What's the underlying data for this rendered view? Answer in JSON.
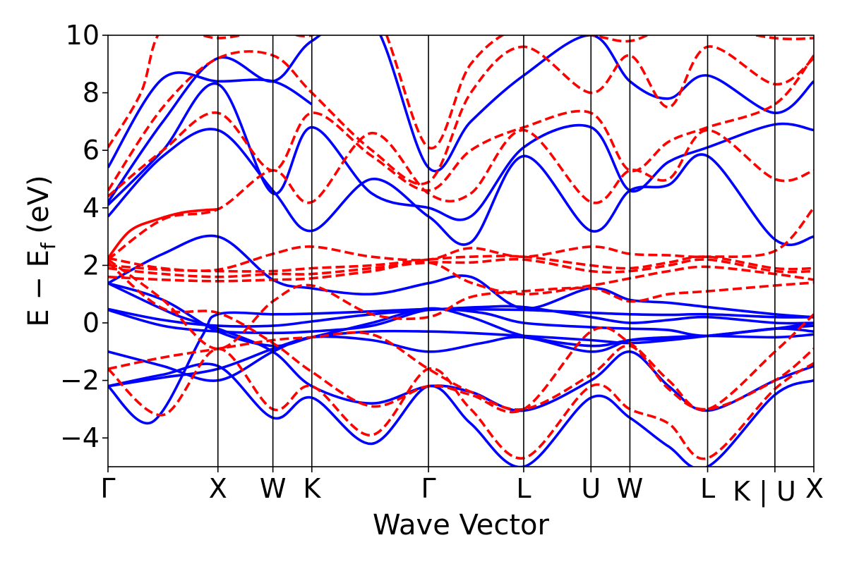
{
  "chart_data": {
    "type": "line",
    "title": "",
    "xlabel": "Wave Vector",
    "ylabel_main": "E − E",
    "ylabel_sub": "f",
    "ylabel_unit": " (eV)",
    "ylim": [
      -5,
      10
    ],
    "yticks": [
      -4,
      -2,
      0,
      2,
      4,
      6,
      8,
      10
    ],
    "ytick_labels": [
      "−4",
      "−2",
      "0",
      "2",
      "4",
      "6",
      "8",
      "10"
    ],
    "kpath": [
      {
        "label": "Γ",
        "x": 0.0
      },
      {
        "label": "X",
        "x": 1.0
      },
      {
        "label": "W",
        "x": 1.5
      },
      {
        "label": "K",
        "x": 1.854
      },
      {
        "label": "Γ",
        "x": 2.915
      },
      {
        "label": "L",
        "x": 3.781
      },
      {
        "label": "U",
        "x": 4.393
      },
      {
        "label": "W",
        "x": 4.747
      },
      {
        "label": "L",
        "x": 5.454
      },
      {
        "label": "K | U",
        "x": 6.066
      },
      {
        "label": "X",
        "x": 6.42
      }
    ],
    "xlim": [
      0,
      6.42
    ],
    "colors": {
      "blue": "#0000ff",
      "red": "#ff0000",
      "axis": "#000000"
    },
    "series": [
      {
        "style": "blue-solid",
        "x": [
          0,
          0.5,
          1.0,
          1.5,
          1.854,
          2.4,
          2.915,
          3.3,
          3.781,
          4.393,
          4.747,
          5.1,
          5.454,
          6.066,
          6.42
        ],
        "y": [
          -2.2,
          -1.9,
          -1.6,
          -0.9,
          -0.5,
          -0.3,
          -0.3,
          -0.35,
          -0.45,
          -0.6,
          -0.7,
          -0.6,
          -0.45,
          -0.2,
          0.0
        ]
      },
      {
        "style": "blue-solid",
        "x": [
          0,
          0.4,
          0.85,
          1.0,
          1.5,
          1.854,
          2.4,
          2.915,
          3.3,
          3.781,
          4.393,
          4.747,
          5.1,
          5.454,
          6.066,
          6.42
        ],
        "y": [
          -2.2,
          -3.45,
          -0.5,
          0.3,
          0.3,
          0.32,
          0.4,
          0.48,
          0.47,
          0.45,
          0.35,
          0.3,
          0.28,
          0.3,
          0.2,
          0.2
        ]
      },
      {
        "style": "blue-solid",
        "x": [
          0,
          0.5,
          1.0,
          1.5,
          1.854,
          2.4,
          2.915,
          3.4,
          3.781,
          4.393,
          4.747,
          5.1,
          5.454,
          6.066,
          6.42
        ],
        "y": [
          0.48,
          0.1,
          -0.1,
          -0.1,
          0.05,
          0.3,
          0.45,
          0.55,
          0.55,
          0.2,
          0.0,
          0.1,
          0.2,
          0.0,
          0.0
        ]
      },
      {
        "style": "blue-solid",
        "x": [
          0,
          0.5,
          1.0,
          1.5,
          1.854,
          2.4,
          2.915,
          3.4,
          3.781,
          4.393,
          4.747,
          5.1,
          5.454,
          6.066,
          6.42
        ],
        "y": [
          0.45,
          -0.1,
          -0.3,
          -0.35,
          -0.3,
          -0.1,
          0.45,
          0.35,
          0.0,
          -0.15,
          -0.2,
          -0.25,
          -0.45,
          -0.2,
          -0.3
        ]
      },
      {
        "style": "blue-solid",
        "x": [
          0,
          0.5,
          1.0,
          1.5,
          1.854,
          2.4,
          2.915,
          3.4,
          3.781,
          4.393,
          4.747,
          5.1,
          5.454,
          6.066,
          6.42
        ],
        "y": [
          -1.0,
          -1.5,
          -2.0,
          -1.0,
          -0.5,
          -0.6,
          -1.0,
          -0.7,
          -0.5,
          -1.0,
          -0.6,
          -0.5,
          -0.45,
          -0.5,
          -0.4
        ]
      },
      {
        "style": "blue-solid",
        "x": [
          0,
          0.5,
          1.0,
          1.5,
          1.854,
          2.4,
          2.915,
          3.3,
          3.781,
          4.393,
          4.747,
          5.1,
          5.454,
          6.066,
          6.42
        ],
        "y": [
          1.38,
          0.8,
          -0.3,
          -0.8,
          -0.5,
          0.0,
          0.5,
          0.2,
          -0.45,
          -0.8,
          -0.6,
          -0.55,
          -0.45,
          -0.2,
          -0.1
        ]
      },
      {
        "style": "blue-solid",
        "x": [
          0,
          0.6,
          1.0,
          1.5,
          1.854,
          2.4,
          2.915,
          3.3,
          3.781,
          4.393,
          4.747,
          5.1,
          5.454,
          6.066,
          6.42
        ],
        "y": [
          1.38,
          0.3,
          -0.2,
          -1.0,
          -2.2,
          -2.8,
          -2.2,
          -2.4,
          -3.05,
          -2.0,
          -1.0,
          -2.2,
          -3.05,
          -2.0,
          -1.5
        ]
      },
      {
        "style": "blue-solid",
        "x": [
          0,
          0.5,
          1.0,
          1.5,
          1.854,
          2.4,
          2.915,
          3.3,
          3.781,
          4.393,
          4.747,
          5.1,
          5.454,
          6.066,
          6.42
        ],
        "y": [
          -2.2,
          -1.8,
          -1.5,
          -3.3,
          -2.6,
          -4.2,
          -2.2,
          -3.5,
          -5.0,
          -2.6,
          -3.3,
          -4.3,
          -5.0,
          -2.5,
          -2.0
        ]
      },
      {
        "style": "blue-solid",
        "x": [
          0,
          0.5,
          1.0,
          1.5,
          1.854,
          2.4,
          2.915,
          3.3,
          3.781,
          4.393,
          4.747,
          5.1,
          5.454,
          6.066,
          6.42
        ],
        "y": [
          1.38,
          2.4,
          3.0,
          1.5,
          1.2,
          1.0,
          1.38,
          1.6,
          0.5,
          1.2,
          0.8,
          0.7,
          0.55,
          0.3,
          0.2
        ]
      },
      {
        "style": "blue-solid",
        "x": [
          0,
          0.5,
          1.0,
          1.5,
          1.854,
          2.4,
          2.915,
          3.3,
          3.781,
          4.393,
          4.747,
          5.1,
          5.454,
          6.066,
          6.42
        ],
        "y": [
          3.7,
          5.8,
          6.7,
          4.6,
          3.2,
          5.0,
          3.7,
          2.8,
          5.8,
          3.2,
          4.6,
          4.8,
          5.8,
          2.9,
          3.0
        ]
      },
      {
        "style": "blue-solid",
        "x": [
          0,
          0.5,
          1.0,
          1.5,
          1.854,
          2.4,
          2.915,
          3.3,
          3.781,
          4.393,
          4.747,
          5.1,
          5.454,
          6.066,
          6.42
        ],
        "y": [
          4.1,
          6.0,
          8.3,
          4.5,
          6.8,
          4.5,
          4.0,
          3.7,
          6.1,
          6.8,
          4.6,
          5.6,
          6.1,
          6.9,
          6.7
        ]
      },
      {
        "style": "blue-solid",
        "x": [
          0,
          0.5,
          1.0,
          1.5,
          1.854,
          2.4,
          2.915,
          3.3,
          3.781,
          4.393,
          4.747,
          5.1,
          5.454,
          6.066,
          6.42
        ],
        "y": [
          4.2,
          7.0,
          9.2,
          8.4,
          9.8,
          10.5,
          5.4,
          7.0,
          8.6,
          10.0,
          8.4,
          7.8,
          8.6,
          7.3,
          8.4
        ]
      },
      {
        "style": "blue-solid",
        "x": [
          0,
          0.5,
          1.0,
          1.5,
          1.854
        ],
        "y": [
          5.4,
          8.5,
          8.4,
          8.4,
          7.6
        ]
      },
      {
        "style": "red-dashed",
        "x": [
          0,
          0.5,
          1.0,
          1.5,
          1.854,
          2.4,
          2.915,
          3.3,
          3.781,
          4.393,
          4.747,
          5.1,
          5.454,
          6.066,
          6.42
        ],
        "y": [
          -1.6,
          -3.2,
          -0.9,
          -3.0,
          -2.2,
          -3.9,
          -1.6,
          -3.0,
          -4.7,
          -2.2,
          -3.0,
          -3.5,
          -4.7,
          -2.3,
          -1.4
        ]
      },
      {
        "style": "red-dashed",
        "x": [
          0,
          0.5,
          1.0,
          1.5,
          1.854,
          2.4,
          2.915,
          3.3,
          3.781,
          4.393,
          4.747,
          5.1,
          5.454,
          6.066,
          6.42
        ],
        "y": [
          -1.6,
          -1.2,
          -0.9,
          -0.6,
          -0.5,
          -0.4,
          -1.6,
          -2.4,
          -3.0,
          -1.8,
          -0.8,
          -2.3,
          -3.0,
          -2.0,
          -0.9
        ]
      },
      {
        "style": "red-dashed",
        "x": [
          0,
          0.5,
          1.0,
          1.5,
          1.854,
          2.4,
          2.915,
          3.3,
          3.781,
          4.393,
          4.747,
          5.1,
          5.454,
          6.066,
          6.42
        ],
        "y": [
          2.1,
          0.5,
          0.35,
          -0.7,
          -1.7,
          -2.9,
          -2.2,
          -2.5,
          -3.0,
          -0.3,
          -0.7,
          -2.0,
          -3.0,
          -1.0,
          0.3
        ]
      },
      {
        "style": "red-dashed",
        "x": [
          0,
          0.5,
          1.0,
          1.5,
          1.854,
          2.4,
          2.915,
          3.3,
          3.781,
          4.393,
          4.747,
          5.1,
          5.454,
          6.066,
          6.42
        ],
        "y": [
          2.2,
          0.8,
          -0.9,
          0.75,
          1.3,
          0.3,
          0.2,
          0.9,
          1.1,
          1.2,
          0.75,
          1.0,
          1.1,
          1.3,
          1.4
        ]
      },
      {
        "style": "red-dashed",
        "x": [
          0,
          0.5,
          1.0,
          1.5,
          1.854,
          2.4,
          2.915,
          3.3,
          3.781,
          4.393,
          4.747,
          5.1,
          5.454,
          6.066,
          6.42
        ],
        "y": [
          1.6,
          1.5,
          1.45,
          1.5,
          1.55,
          1.8,
          2.1,
          1.4,
          1.0,
          1.3,
          1.55,
          1.8,
          1.95,
          1.7,
          1.5
        ]
      },
      {
        "style": "red-dashed",
        "x": [
          0,
          0.5,
          1.0,
          1.5,
          1.854,
          2.4,
          2.915,
          3.3,
          3.781,
          4.393,
          4.747,
          5.1,
          5.454,
          6.066,
          6.42
        ],
        "y": [
          1.9,
          1.7,
          1.6,
          1.7,
          1.7,
          1.9,
          2.1,
          2.1,
          2.2,
          1.8,
          1.8,
          2.0,
          2.2,
          1.8,
          1.8
        ]
      },
      {
        "style": "red-dashed",
        "x": [
          0,
          0.5,
          1.0,
          1.5,
          1.854,
          2.4,
          2.915,
          3.3,
          3.781,
          4.393,
          4.747,
          5.1,
          5.454,
          6.066,
          6.42
        ],
        "y": [
          2.0,
          1.85,
          1.8,
          1.8,
          1.9,
          2.0,
          2.2,
          2.3,
          2.3,
          2.0,
          1.9,
          2.1,
          2.3,
          1.9,
          1.9
        ]
      },
      {
        "style": "red-dashed",
        "x": [
          0,
          0.5,
          1.0,
          1.5,
          1.854,
          2.4,
          2.915,
          3.3,
          3.781,
          4.393,
          4.747,
          5.1,
          5.454,
          6.066,
          6.42
        ],
        "y": [
          2.25,
          1.9,
          1.85,
          2.4,
          2.65,
          2.3,
          2.2,
          2.6,
          2.3,
          2.65,
          2.4,
          2.35,
          2.3,
          2.5,
          4.0
        ]
      },
      {
        "style": "red-dashed",
        "x": [
          0,
          0.5,
          1.0,
          1.5,
          1.854,
          2.4,
          2.915,
          3.3,
          3.781,
          4.393,
          4.747,
          5.1,
          5.454,
          6.066,
          6.42
        ],
        "y": [
          2.2,
          3.6,
          3.95,
          5.3,
          4.2,
          6.6,
          4.5,
          4.5,
          6.7,
          4.2,
          5.3,
          5.0,
          6.7,
          5.0,
          5.3
        ]
      },
      {
        "style": "red-dashed",
        "x": [
          0,
          0.5,
          1.0,
          1.5,
          1.854,
          2.4,
          2.915,
          3.3,
          3.781,
          4.393,
          4.747,
          5.1,
          5.454,
          6.066,
          6.42
        ],
        "y": [
          4.4,
          6.0,
          7.3,
          5.3,
          7.3,
          5.8,
          4.6,
          6.0,
          6.8,
          7.3,
          5.3,
          6.3,
          6.8,
          7.6,
          9.3
        ]
      },
      {
        "style": "red-dashed",
        "x": [
          0,
          0.5,
          1.0,
          1.5,
          1.854,
          2.4,
          2.915,
          3.3,
          3.781,
          4.393,
          4.747,
          5.1,
          5.454,
          6.066,
          6.42
        ],
        "y": [
          4.6,
          7.5,
          9.2,
          9.3,
          8.0,
          6.0,
          4.9,
          8.0,
          9.6,
          8.0,
          9.3,
          7.5,
          9.6,
          8.3,
          9.2
        ]
      },
      {
        "style": "red-dashed",
        "x": [
          0,
          0.3,
          0.5,
          1.0,
          1.5,
          1.854,
          2.4,
          2.915,
          3.3,
          3.781,
          4.393,
          4.747,
          5.1,
          5.454,
          6.066,
          6.42
        ],
        "y": [
          6.1,
          8.0,
          10.2,
          9.9,
          10.2,
          10.0,
          11.0,
          6.1,
          9.0,
          10.3,
          10.0,
          9.8,
          10.3,
          10.3,
          9.9,
          9.9
        ]
      },
      {
        "style": "red-solid",
        "x": [
          0.0,
          0.2,
          0.45,
          0.7,
          1.0
        ],
        "y": [
          2.25,
          3.2,
          3.6,
          3.85,
          3.95
        ]
      }
    ]
  }
}
